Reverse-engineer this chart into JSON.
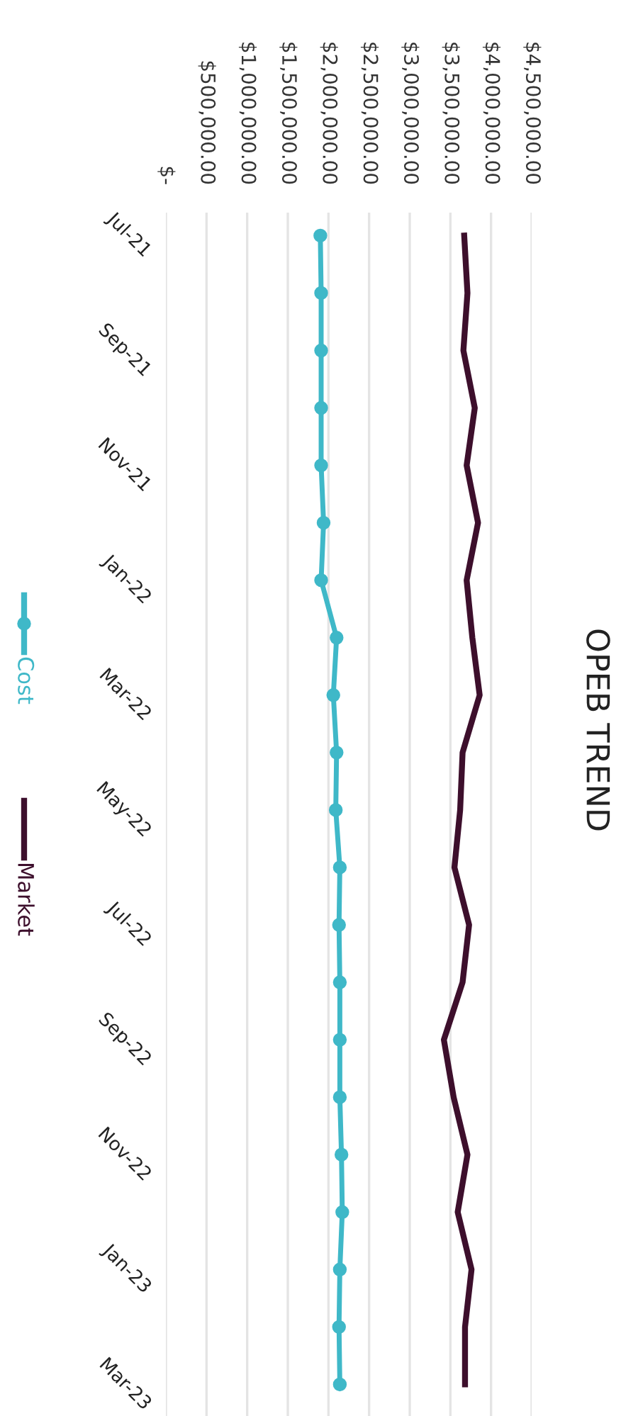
{
  "chart_data": {
    "type": "line",
    "title": "OPEB TREND",
    "orientation": "horizontal",
    "categories": [
      "Jul-21",
      null,
      "Sep-21",
      null,
      "Nov-21",
      null,
      "Jan-22",
      null,
      "Mar-22",
      null,
      "May-22",
      null,
      "Jul-22",
      null,
      "Sep-22",
      null,
      "Nov-22",
      null,
      "Jan-23",
      null,
      "Mar-23"
    ],
    "series": [
      {
        "name": "Cost",
        "color": "#3fb8c8",
        "marker": "circle",
        "values": [
          1900000,
          1910000,
          1910000,
          1910000,
          1910000,
          1940000,
          1910000,
          2100000,
          2060000,
          2100000,
          2090000,
          2140000,
          2130000,
          2140000,
          2140000,
          2140000,
          2160000,
          2170000,
          2140000,
          2130000,
          2140000
        ]
      },
      {
        "name": "Market",
        "color": "#3d0f2c",
        "marker": "none",
        "values": [
          3670000,
          3710000,
          3660000,
          3800000,
          3700000,
          3840000,
          3700000,
          3770000,
          3860000,
          3650000,
          3620000,
          3550000,
          3730000,
          3650000,
          3420000,
          3540000,
          3710000,
          3590000,
          3760000,
          3680000,
          3680000
        ]
      }
    ],
    "xlim": [
      0,
      4500000
    ],
    "xticks": [
      {
        "value": 0,
        "label": "$-"
      },
      {
        "value": 500000,
        "label": "$500,000.00"
      },
      {
        "value": 1000000,
        "label": "$1,000,000.00"
      },
      {
        "value": 1500000,
        "label": "$1,500,000.00"
      },
      {
        "value": 2000000,
        "label": "$2,000,000.00"
      },
      {
        "value": 2500000,
        "label": "$2,500,000.00"
      },
      {
        "value": 3000000,
        "label": "$3,000,000.00"
      },
      {
        "value": 3500000,
        "label": "$3,500,000.00"
      },
      {
        "value": 4000000,
        "label": "$4,000,000.00"
      },
      {
        "value": 4500000,
        "label": "$4,500,000.00"
      }
    ],
    "grid": "x",
    "legend": "left"
  }
}
